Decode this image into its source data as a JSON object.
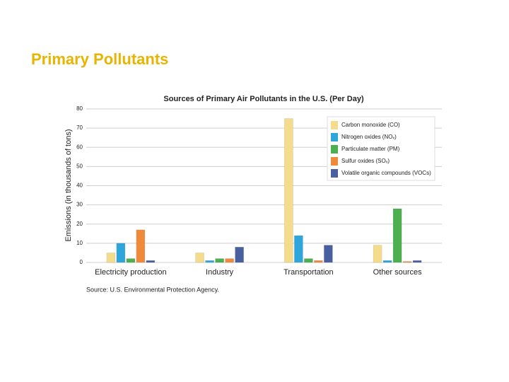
{
  "title": "Primary Pollutants",
  "chart_data": {
    "type": "bar",
    "title": "Sources of Primary Air Pollutants in the U.S. (Per Day)",
    "y_label": "Emissions (in thousands of tons)",
    "note": "Source: U.S. Environmental Protection Agency.",
    "categories": [
      "Electricity production",
      "Industry",
      "Transportation",
      "Other sources"
    ],
    "series": [
      {
        "name": "Carbon monoxide (CO)",
        "color": "#f5dc8c",
        "values": [
          5,
          5,
          75,
          9
        ]
      },
      {
        "name": "Nitrogen oxides (NOₓ)",
        "color": "#2ea6dc",
        "values": [
          10,
          1,
          14,
          1
        ]
      },
      {
        "name": "Particulate matter (PM)",
        "color": "#4cb050",
        "values": [
          2,
          2,
          2,
          28
        ]
      },
      {
        "name": "Sulfur oxides (SOₓ)",
        "color": "#f08a3a",
        "values": [
          17,
          2,
          1,
          0.5
        ]
      },
      {
        "name": "Volatile organic compounds (VOCs)",
        "color": "#4a5fa0",
        "values": [
          1,
          8,
          9,
          1
        ]
      }
    ],
    "ylim": [
      0,
      80
    ],
    "yticks": [
      0,
      10,
      20,
      30,
      40,
      50,
      60,
      70,
      80
    ],
    "grid": true,
    "legend": "upper right"
  }
}
